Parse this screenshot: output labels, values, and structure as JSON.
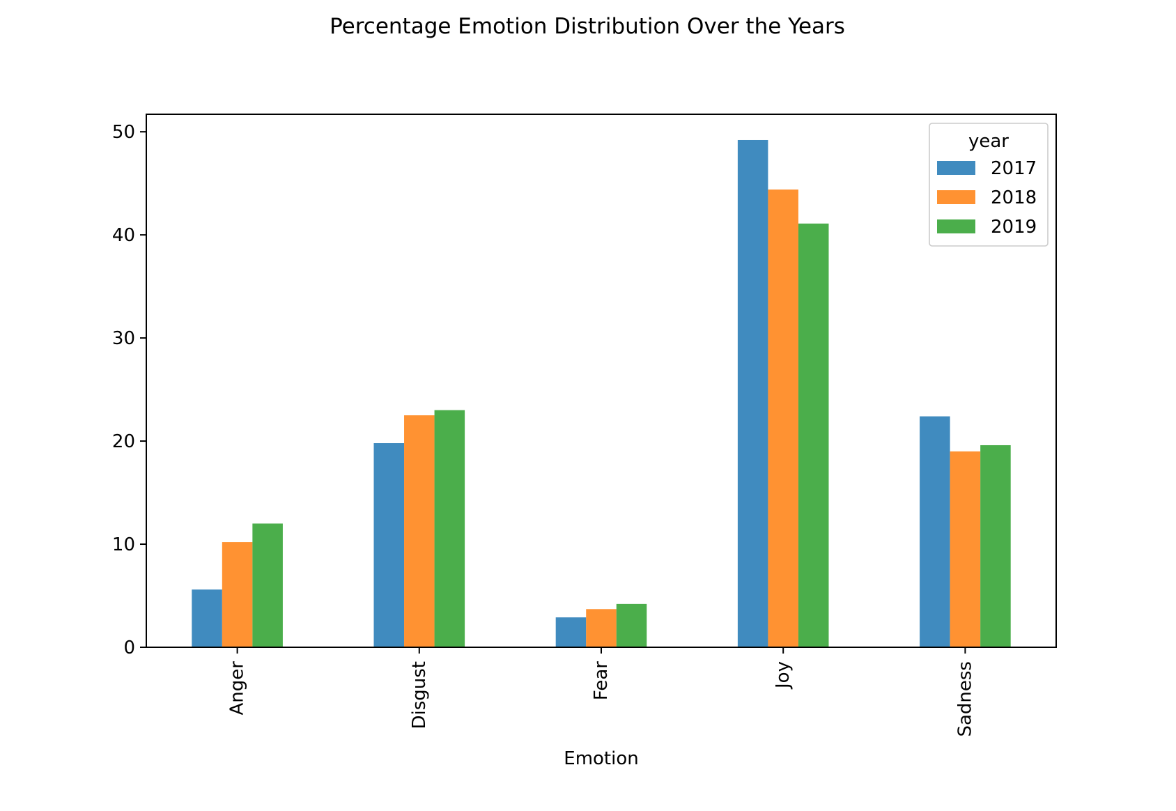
{
  "chart_data": {
    "type": "bar",
    "title": "Percentage Emotion Distribution Over the Years",
    "xlabel": "Emotion",
    "ylabel": "",
    "categories": [
      "Anger",
      "Disgust",
      "Fear",
      "Joy",
      "Sadness"
    ],
    "series": [
      {
        "name": "2017",
        "color": "#1f77b4",
        "values": [
          5.6,
          19.8,
          2.9,
          49.2,
          22.4
        ]
      },
      {
        "name": "2018",
        "color": "#ff7f0e",
        "values": [
          10.2,
          22.5,
          3.7,
          44.4,
          19.0
        ]
      },
      {
        "name": "2019",
        "color": "#2ca02c",
        "values": [
          12.0,
          23.0,
          4.2,
          41.1,
          19.6
        ]
      }
    ],
    "ylim": [
      0,
      51.7
    ],
    "yticks": [
      0,
      10,
      20,
      30,
      40,
      50
    ],
    "grid": false,
    "legend": {
      "title": "year",
      "placement": "top-right"
    },
    "bar_opacity": 0.85
  }
}
